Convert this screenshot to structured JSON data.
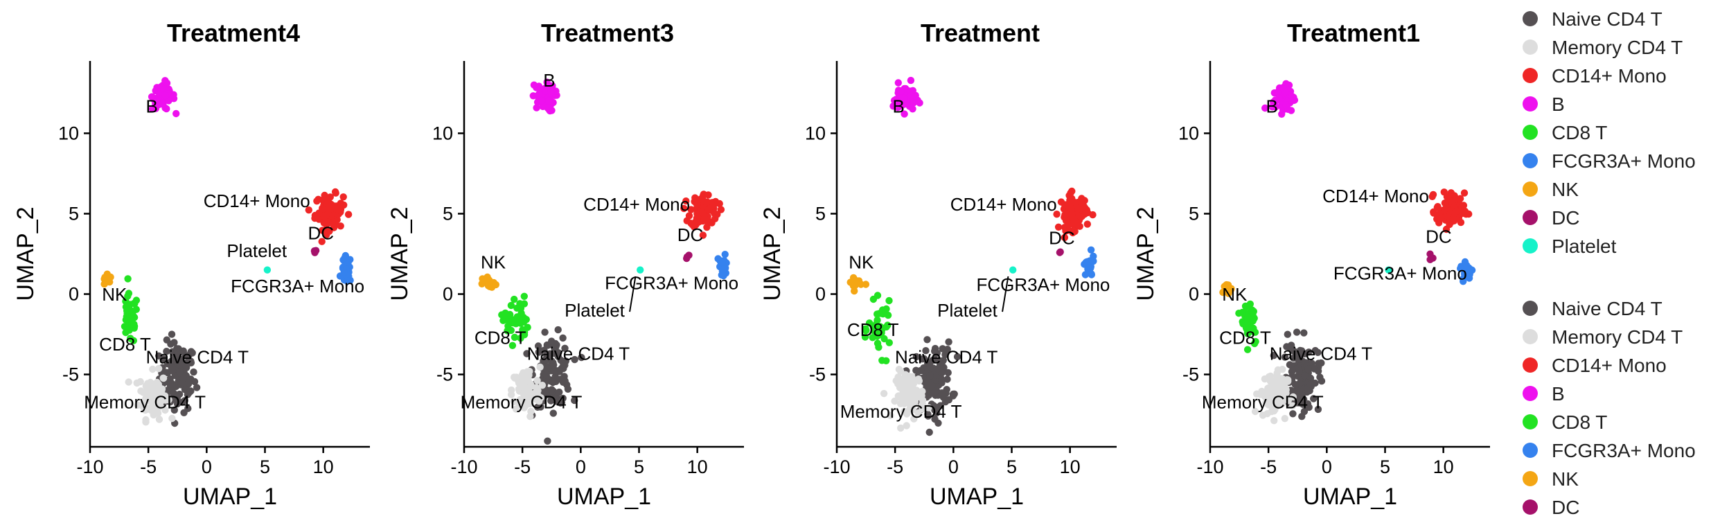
{
  "chart_data": [
    {
      "type": "scatter",
      "title": "Treatment4",
      "xlabel": "UMAP_1",
      "ylabel": "UMAP_2",
      "xlim": [
        -10,
        14
      ],
      "ylim": [
        -9.5,
        14.5
      ],
      "xticks": [
        -10,
        -5,
        0,
        5,
        10
      ],
      "yticks": [
        -5,
        0,
        5,
        10
      ],
      "clusters": [
        {
          "name": "Naive CD4 T",
          "cx": -2.5,
          "cy": -5.2,
          "sx": 1.3,
          "sy": 1.8,
          "n": 120
        },
        {
          "name": "Memory CD4 T",
          "cx": -4.6,
          "cy": -6.3,
          "sx": 1.0,
          "sy": 1.2,
          "n": 90
        },
        {
          "name": "CD14+ Mono",
          "cx": 10.5,
          "cy": 5.1,
          "sx": 1.0,
          "sy": 0.9,
          "n": 90
        },
        {
          "name": "B",
          "cx": -3.7,
          "cy": 12.3,
          "sx": 0.8,
          "sy": 0.7,
          "n": 60
        },
        {
          "name": "CD8 T",
          "cx": -6.6,
          "cy": -1.6,
          "sx": 0.6,
          "sy": 1.3,
          "n": 40
        },
        {
          "name": "FCGR3A+ Mono",
          "cx": 12.0,
          "cy": 1.5,
          "sx": 0.35,
          "sy": 0.7,
          "n": 25
        },
        {
          "name": "NK",
          "cx": -8.6,
          "cy": 0.8,
          "sx": 0.4,
          "sy": 0.3,
          "n": 12
        },
        {
          "name": "DC",
          "cx": 9.3,
          "cy": 2.5,
          "sx": 0.15,
          "sy": 0.25,
          "n": 3
        },
        {
          "name": "Platelet",
          "cx": 5.2,
          "cy": 1.5,
          "sx": 0.05,
          "sy": 0.05,
          "n": 1
        }
      ],
      "labels": [
        {
          "text": "B",
          "x": -4.7,
          "y": 11.3
        },
        {
          "text": "CD14+ Mono",
          "x": 4.3,
          "y": 5.4
        },
        {
          "text": "DC",
          "x": 9.8,
          "y": 3.4
        },
        {
          "text": "Platelet",
          "x": 4.3,
          "y": 2.3
        },
        {
          "text": "FCGR3A+ Mono",
          "x": 7.8,
          "y": 0.1
        },
        {
          "text": "NK",
          "x": -7.9,
          "y": -0.4
        },
        {
          "text": "CD8 T",
          "x": -7.0,
          "y": -3.5
        },
        {
          "text": "Naive CD4 T",
          "x": -0.8,
          "y": -4.3
        },
        {
          "text": "Memory CD4 T",
          "x": -5.3,
          "y": -7.1
        }
      ]
    },
    {
      "type": "scatter",
      "title": "Treatment3",
      "xlabel": "UMAP_1",
      "ylabel": "UMAP_2",
      "xlim": [
        -10,
        14
      ],
      "ylim": [
        -9.5,
        14.5
      ],
      "xticks": [
        -10,
        -5,
        0,
        5,
        10
      ],
      "yticks": [
        -5,
        0,
        5,
        10
      ],
      "clusters": [
        {
          "name": "Naive CD4 T",
          "cx": -2.4,
          "cy": -4.8,
          "sx": 1.3,
          "sy": 1.8,
          "n": 120
        },
        {
          "name": "Memory CD4 T",
          "cx": -4.7,
          "cy": -6.0,
          "sx": 1.0,
          "sy": 1.2,
          "n": 90
        },
        {
          "name": "CD14+ Mono",
          "cx": 10.6,
          "cy": 5.2,
          "sx": 1.0,
          "sy": 0.9,
          "n": 90
        },
        {
          "name": "B",
          "cx": -3.2,
          "cy": 12.2,
          "sx": 0.8,
          "sy": 0.7,
          "n": 60
        },
        {
          "name": "CD8 T",
          "cx": -5.6,
          "cy": -1.6,
          "sx": 0.9,
          "sy": 1.2,
          "n": 40
        },
        {
          "name": "FCGR3A+ Mono",
          "cx": 12.2,
          "cy": 1.7,
          "sx": 0.35,
          "sy": 0.6,
          "n": 25
        },
        {
          "name": "NK",
          "cx": -7.8,
          "cy": 0.6,
          "sx": 0.5,
          "sy": 0.4,
          "n": 14
        },
        {
          "name": "DC",
          "cx": 9.2,
          "cy": 2.2,
          "sx": 0.15,
          "sy": 0.2,
          "n": 3
        },
        {
          "name": "Platelet",
          "cx": 5.1,
          "cy": 1.5,
          "sx": 0.05,
          "sy": 0.05,
          "n": 1
        }
      ],
      "labels": [
        {
          "text": "B",
          "x": -2.7,
          "y": 12.9
        },
        {
          "text": "CD14+ Mono",
          "x": 4.8,
          "y": 5.2
        },
        {
          "text": "DC",
          "x": 9.4,
          "y": 3.3
        },
        {
          "text": "FCGR3A+ Mono",
          "x": 7.8,
          "y": 0.3
        },
        {
          "text": "Platelet",
          "x": 1.2,
          "y": -1.4
        },
        {
          "text": "NK",
          "x": -7.5,
          "y": 1.6
        },
        {
          "text": "CD8 T",
          "x": -6.9,
          "y": -3.1
        },
        {
          "text": "Naive CD4 T",
          "x": -0.2,
          "y": -4.1
        },
        {
          "text": "Memory CD4 T",
          "x": -5.1,
          "y": -7.1
        }
      ],
      "connectors": [
        {
          "x1": 4.7,
          "y1": 1.1,
          "x2": 4.2,
          "y2": -1.1
        }
      ]
    },
    {
      "type": "scatter",
      "title": "Treatment",
      "xlabel": "UMAP_1",
      "ylabel": "UMAP_2",
      "xlim": [
        -10,
        14
      ],
      "ylim": [
        -9.5,
        14.5
      ],
      "xticks": [
        -10,
        -5,
        0,
        5,
        10
      ],
      "yticks": [
        -5,
        0,
        5,
        10
      ],
      "clusters": [
        {
          "name": "Naive CD4 T",
          "cx": -1.7,
          "cy": -5.2,
          "sx": 1.3,
          "sy": 1.8,
          "n": 120
        },
        {
          "name": "Memory CD4 T",
          "cx": -3.7,
          "cy": -6.3,
          "sx": 1.0,
          "sy": 1.2,
          "n": 90
        },
        {
          "name": "CD14+ Mono",
          "cx": 10.3,
          "cy": 5.1,
          "sx": 1.0,
          "sy": 0.9,
          "n": 90
        },
        {
          "name": "B",
          "cx": -4.2,
          "cy": 12.2,
          "sx": 0.8,
          "sy": 0.7,
          "n": 60
        },
        {
          "name": "CD8 T",
          "cx": -6.3,
          "cy": -2.2,
          "sx": 0.8,
          "sy": 1.3,
          "n": 40
        },
        {
          "name": "FCGR3A+ Mono",
          "cx": 11.6,
          "cy": 1.7,
          "sx": 0.4,
          "sy": 0.6,
          "n": 25
        },
        {
          "name": "NK",
          "cx": -8.4,
          "cy": 0.7,
          "sx": 0.5,
          "sy": 0.4,
          "n": 14
        },
        {
          "name": "DC",
          "cx": 9.2,
          "cy": 2.5,
          "sx": 0.12,
          "sy": 0.15,
          "n": 2
        },
        {
          "name": "Platelet",
          "cx": 5.1,
          "cy": 1.5,
          "sx": 0.05,
          "sy": 0.05,
          "n": 1
        }
      ],
      "labels": [
        {
          "text": "B",
          "x": -4.7,
          "y": 11.3
        },
        {
          "text": "CD14+ Mono",
          "x": 4.3,
          "y": 5.2
        },
        {
          "text": "DC",
          "x": 9.3,
          "y": 3.1
        },
        {
          "text": "FCGR3A+ Mono",
          "x": 7.7,
          "y": 0.2
        },
        {
          "text": "Platelet",
          "x": 1.2,
          "y": -1.4
        },
        {
          "text": "NK",
          "x": -7.9,
          "y": 1.6
        },
        {
          "text": "CD8 T",
          "x": -6.9,
          "y": -2.6
        },
        {
          "text": "Naive CD4 T",
          "x": -0.6,
          "y": -4.3
        },
        {
          "text": "Memory CD4 T",
          "x": -4.5,
          "y": -7.7
        }
      ],
      "connectors": [
        {
          "x1": 4.7,
          "y1": 1.1,
          "x2": 4.2,
          "y2": -1.1
        }
      ]
    },
    {
      "type": "scatter",
      "title": "Treatment1",
      "xlabel": "UMAP_1",
      "ylabel": "UMAP_2",
      "xlim": [
        -10,
        14
      ],
      "ylim": [
        -9.5,
        14.5
      ],
      "xticks": [
        -10,
        -5,
        0,
        5,
        10
      ],
      "yticks": [
        -5,
        0,
        5,
        10
      ],
      "clusters": [
        {
          "name": "Naive CD4 T",
          "cx": -2.2,
          "cy": -5.2,
          "sx": 1.3,
          "sy": 1.8,
          "n": 120
        },
        {
          "name": "Memory CD4 T",
          "cx": -4.6,
          "cy": -6.2,
          "sx": 1.0,
          "sy": 1.2,
          "n": 90
        },
        {
          "name": "CD14+ Mono",
          "cx": 10.6,
          "cy": 5.2,
          "sx": 1.0,
          "sy": 0.9,
          "n": 90
        },
        {
          "name": "B",
          "cx": -3.7,
          "cy": 12.2,
          "sx": 0.8,
          "sy": 0.7,
          "n": 60
        },
        {
          "name": "CD8 T",
          "cx": -6.6,
          "cy": -1.6,
          "sx": 0.6,
          "sy": 1.3,
          "n": 40
        },
        {
          "name": "FCGR3A+ Mono",
          "cx": 12.0,
          "cy": 1.4,
          "sx": 0.45,
          "sy": 0.6,
          "n": 25
        },
        {
          "name": "NK",
          "cx": -8.5,
          "cy": 0.5,
          "sx": 0.4,
          "sy": 0.3,
          "n": 10
        },
        {
          "name": "DC",
          "cx": 9.0,
          "cy": 2.2,
          "sx": 0.12,
          "sy": 0.25,
          "n": 3
        },
        {
          "name": "Platelet",
          "cx": 5.3,
          "cy": 1.5,
          "sx": 0.05,
          "sy": 0.05,
          "n": 1
        }
      ],
      "labels": [
        {
          "text": "B",
          "x": -4.7,
          "y": 11.3
        },
        {
          "text": "CD14+ Mono",
          "x": 4.2,
          "y": 5.7
        },
        {
          "text": "DC",
          "x": 9.6,
          "y": 3.2
        },
        {
          "text": "FCGR3A+ Mono",
          "x": 6.3,
          "y": 0.9
        },
        {
          "text": "NK",
          "x": -7.9,
          "y": -0.4
        },
        {
          "text": "CD8 T",
          "x": -7.0,
          "y": -3.1
        },
        {
          "text": "Naive CD4 T",
          "x": -0.5,
          "y": -4.1
        },
        {
          "text": "Memory CD4 T",
          "x": -5.5,
          "y": -7.1
        }
      ]
    }
  ],
  "legend": {
    "placement": "right",
    "groups": [
      {
        "items": [
          {
            "label": "Naive CD4 T",
            "color": "#555053"
          },
          {
            "label": "Memory CD4 T",
            "color": "#dddddd"
          },
          {
            "label": "CD14+ Mono",
            "color": "#ef2626"
          },
          {
            "label": "B",
            "color": "#ee11ee"
          },
          {
            "label": "CD8 T",
            "color": "#22e222"
          },
          {
            "label": "FCGR3A+ Mono",
            "color": "#3582ee"
          },
          {
            "label": "NK",
            "color": "#f4a614"
          },
          {
            "label": "DC",
            "color": "#a5116a"
          },
          {
            "label": "Platelet",
            "color": "#16f2c9"
          }
        ]
      },
      {
        "items": [
          {
            "label": "Naive CD4 T",
            "color": "#555053"
          },
          {
            "label": "Memory CD4 T",
            "color": "#dddddd"
          },
          {
            "label": "CD14+ Mono",
            "color": "#ef2626"
          },
          {
            "label": "B",
            "color": "#ee11ee"
          },
          {
            "label": "CD8 T",
            "color": "#22e222"
          },
          {
            "label": "FCGR3A+ Mono",
            "color": "#3582ee"
          },
          {
            "label": "NK",
            "color": "#f4a614"
          },
          {
            "label": "DC",
            "color": "#a5116a"
          }
        ]
      }
    ]
  }
}
